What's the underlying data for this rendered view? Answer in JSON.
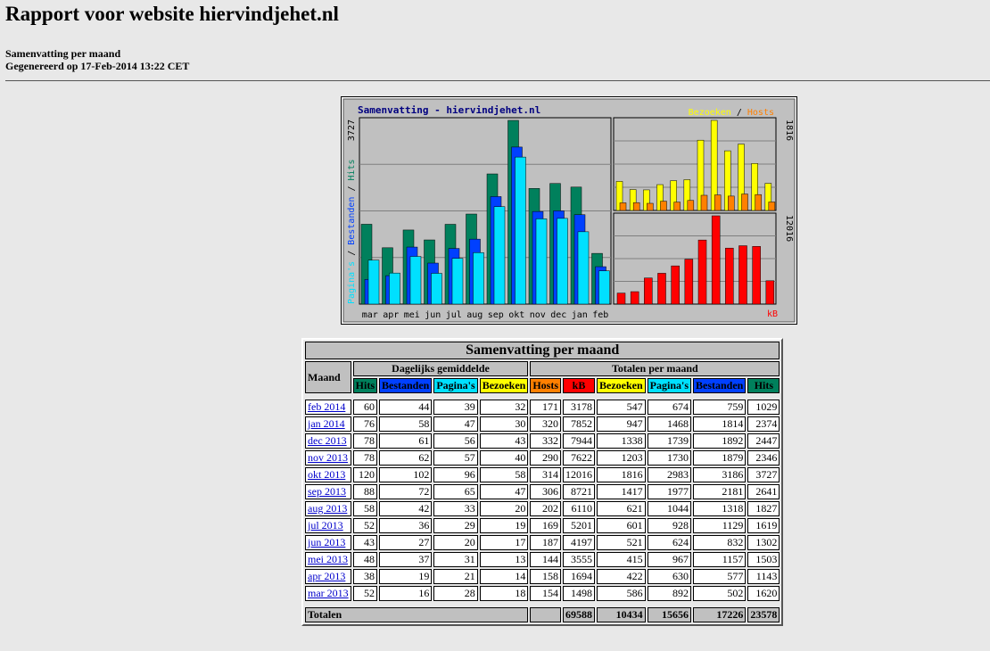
{
  "header": {
    "title": "Rapport voor website hiervindjehet.nl",
    "subtitle1": "Samenvatting per maand",
    "subtitle2": "Gegenereerd op 17-Feb-2014 13:22 CET"
  },
  "colors": {
    "hits": "#00805c",
    "bestanden": "#0040ff",
    "paginas": "#00e0ff",
    "bezoeken": "#ffff00",
    "hosts": "#ff8000",
    "kb": "#ff0000",
    "graph_bg": "#c0c0c0",
    "navy": "#000080"
  },
  "chart_data": [
    {
      "type": "bar",
      "title": "Samenvatting - hiervindjehet.nl",
      "ylabel_parts": [
        "Pagina's",
        "Bestanden",
        "Hits"
      ],
      "ymax_label": "3727",
      "categories": [
        "mar",
        "apr",
        "mei",
        "jun",
        "jul",
        "aug",
        "sep",
        "okt",
        "nov",
        "dec",
        "jan",
        "feb"
      ],
      "series": [
        {
          "name": "Hits",
          "values": [
            1620,
            1143,
            1503,
            1302,
            1619,
            1827,
            2641,
            3727,
            2346,
            2447,
            2374,
            1029
          ]
        },
        {
          "name": "Bestanden",
          "values": [
            502,
            577,
            1157,
            832,
            1129,
            1318,
            2181,
            3186,
            1879,
            1892,
            1814,
            759
          ]
        },
        {
          "name": "Pagina's",
          "values": [
            892,
            630,
            967,
            624,
            928,
            1044,
            1977,
            2983,
            1730,
            1739,
            1468,
            674
          ]
        }
      ],
      "ylim": [
        0,
        3727
      ]
    },
    {
      "type": "bar",
      "legend_parts": [
        "Bezoeken",
        "Hosts"
      ],
      "ymax_label": "1816",
      "categories": [
        "mar",
        "apr",
        "mei",
        "jun",
        "jul",
        "aug",
        "sep",
        "okt",
        "nov",
        "dec",
        "jan",
        "feb"
      ],
      "series": [
        {
          "name": "Bezoeken",
          "values": [
            586,
            422,
            415,
            521,
            601,
            621,
            1417,
            1816,
            1203,
            1338,
            947,
            547
          ]
        },
        {
          "name": "Hosts",
          "values": [
            154,
            158,
            144,
            187,
            169,
            202,
            306,
            314,
            290,
            332,
            320,
            171
          ]
        }
      ],
      "ylim": [
        0,
        1816
      ]
    },
    {
      "type": "bar",
      "legend": "kB",
      "ymax_label": "12016",
      "categories": [
        "mar",
        "apr",
        "mei",
        "jun",
        "jul",
        "aug",
        "sep",
        "okt",
        "nov",
        "dec",
        "jan",
        "feb"
      ],
      "series": [
        {
          "name": "kB",
          "values": [
            1498,
            1694,
            3555,
            4197,
            5201,
            6110,
            8721,
            12016,
            7622,
            7944,
            7852,
            3178
          ]
        }
      ],
      "ylim": [
        0,
        12016
      ]
    }
  ],
  "table": {
    "title": "Samenvatting per maand",
    "maand_header": "Maand",
    "group_daily": "Dagelijks gemiddelde",
    "group_totals": "Totalen per maand",
    "columns": [
      {
        "label": "Hits",
        "bg": "#00805c",
        "fg": "#000000"
      },
      {
        "label": "Bestanden",
        "bg": "#0040ff",
        "fg": "#000000"
      },
      {
        "label": "Pagina's",
        "bg": "#00e0ff",
        "fg": "#000000"
      },
      {
        "label": "Bezoeken",
        "bg": "#ffff00",
        "fg": "#000000"
      },
      {
        "label": "Hosts",
        "bg": "#ff8000",
        "fg": "#000000"
      },
      {
        "label": "kB",
        "bg": "#ff0000",
        "fg": "#000000"
      },
      {
        "label": "Bezoeken",
        "bg": "#ffff00",
        "fg": "#000000"
      },
      {
        "label": "Pagina's",
        "bg": "#00e0ff",
        "fg": "#000000"
      },
      {
        "label": "Bestanden",
        "bg": "#0040ff",
        "fg": "#000000"
      },
      {
        "label": "Hits",
        "bg": "#00805c",
        "fg": "#000000"
      }
    ],
    "rows": [
      {
        "month": "feb 2014",
        "values": [
          "60",
          "44",
          "39",
          "32",
          "171",
          "3178",
          "547",
          "674",
          "759",
          "1029"
        ]
      },
      {
        "month": "jan 2014",
        "values": [
          "76",
          "58",
          "47",
          "30",
          "320",
          "7852",
          "947",
          "1468",
          "1814",
          "2374"
        ]
      },
      {
        "month": "dec 2013",
        "values": [
          "78",
          "61",
          "56",
          "43",
          "332",
          "7944",
          "1338",
          "1739",
          "1892",
          "2447"
        ]
      },
      {
        "month": "nov 2013",
        "values": [
          "78",
          "62",
          "57",
          "40",
          "290",
          "7622",
          "1203",
          "1730",
          "1879",
          "2346"
        ]
      },
      {
        "month": "okt 2013",
        "values": [
          "120",
          "102",
          "96",
          "58",
          "314",
          "12016",
          "1816",
          "2983",
          "3186",
          "3727"
        ]
      },
      {
        "month": "sep 2013",
        "values": [
          "88",
          "72",
          "65",
          "47",
          "306",
          "8721",
          "1417",
          "1977",
          "2181",
          "2641"
        ]
      },
      {
        "month": "aug 2013",
        "values": [
          "58",
          "42",
          "33",
          "20",
          "202",
          "6110",
          "621",
          "1044",
          "1318",
          "1827"
        ]
      },
      {
        "month": "jul 2013",
        "values": [
          "52",
          "36",
          "29",
          "19",
          "169",
          "5201",
          "601",
          "928",
          "1129",
          "1619"
        ]
      },
      {
        "month": "jun 2013",
        "values": [
          "43",
          "27",
          "20",
          "17",
          "187",
          "4197",
          "521",
          "624",
          "832",
          "1302"
        ]
      },
      {
        "month": "mei 2013",
        "values": [
          "48",
          "37",
          "31",
          "13",
          "144",
          "3555",
          "415",
          "967",
          "1157",
          "1503"
        ]
      },
      {
        "month": "apr 2013",
        "values": [
          "38",
          "19",
          "21",
          "14",
          "158",
          "1694",
          "422",
          "630",
          "577",
          "1143"
        ]
      },
      {
        "month": "mar 2013",
        "values": [
          "52",
          "16",
          "28",
          "18",
          "154",
          "1498",
          "586",
          "892",
          "502",
          "1620"
        ]
      }
    ],
    "totals": {
      "label": "Totalen",
      "values": [
        "69588",
        "10434",
        "15656",
        "17226",
        "23578"
      ]
    }
  }
}
